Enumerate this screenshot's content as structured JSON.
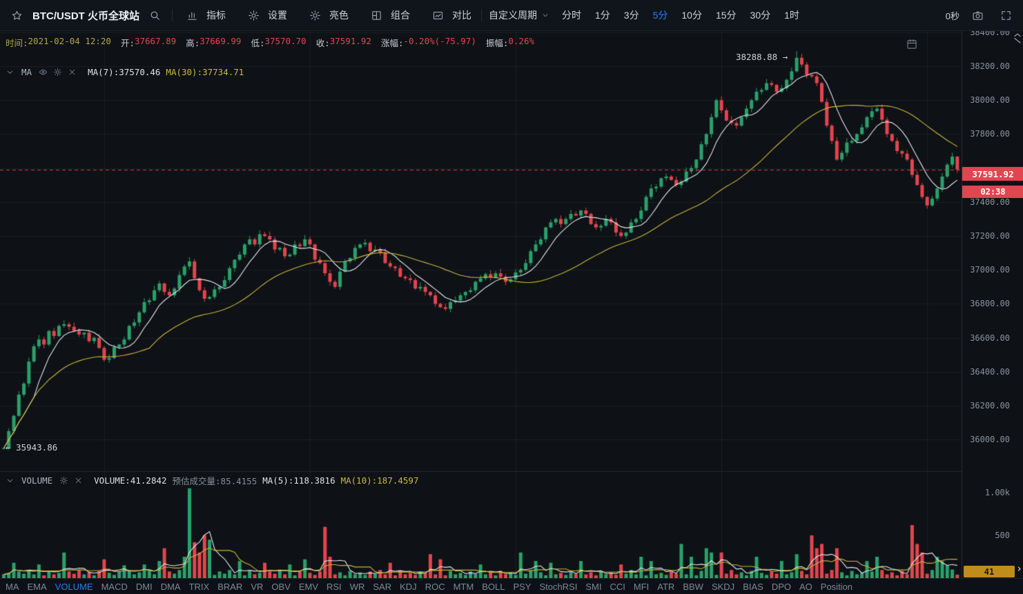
{
  "toolbar": {
    "symbol": "BTC/USDT 火币全球站",
    "menu_items": [
      {
        "label": "指标",
        "icon": "indicator-icon",
        "name": "menu-indicators"
      },
      {
        "label": "设置",
        "icon": "gear-icon",
        "name": "menu-settings"
      },
      {
        "label": "亮色",
        "icon": "sun-icon",
        "name": "menu-light-theme"
      },
      {
        "label": "组合",
        "icon": "layout-icon",
        "name": "menu-combine"
      },
      {
        "label": "对比",
        "icon": "compare-icon",
        "name": "menu-compare"
      }
    ],
    "custom_period_label": "自定义周期",
    "timeframes": [
      "分时",
      "1分",
      "3分",
      "5分",
      "10分",
      "15分",
      "30分",
      "1时"
    ],
    "active_timeframe": "5分",
    "countdown_label": "0秒"
  },
  "info_bar": {
    "time": {
      "label": "时间:",
      "value": "2021-02-04 12:20"
    },
    "fields": [
      {
        "name": "open",
        "label": "开:",
        "value": "37667.89"
      },
      {
        "name": "high",
        "label": "高:",
        "value": "37669.99"
      },
      {
        "name": "low",
        "label": "低:",
        "value": "37570.70"
      },
      {
        "name": "close",
        "label": "收:",
        "value": "37591.92"
      },
      {
        "name": "change",
        "label": "涨幅:",
        "value": "-0.20%(-75.97)"
      },
      {
        "name": "amplitude",
        "label": "振幅:",
        "value": "0.26%"
      }
    ]
  },
  "ma_panel": {
    "title": "MA",
    "ma7": "MA(7):37570.46",
    "ma30": "MA(30):37734.71"
  },
  "volume_panel": {
    "title": "VOLUME",
    "volume": "VOLUME:41.2842",
    "estimate": "预估成交量:85.4155",
    "ma5": "MA(5):118.3816",
    "ma10": "MA(10):187.4597"
  },
  "axis": {
    "price_labels": [
      "38400.00",
      "38200.00",
      "38000.00",
      "37800.00",
      "37400.00",
      "37200.00",
      "37000.00",
      "36800.00",
      "36600.00",
      "36400.00",
      "36200.00",
      "36000.00"
    ],
    "current_price": "37591.92",
    "countdown": "02:38",
    "volume_labels": [
      {
        "text": "1.00k",
        "value": 1000
      },
      {
        "text": "500",
        "value": 500
      }
    ],
    "volume_badge": "41"
  },
  "annotations": {
    "high_label": "38288.88 →",
    "low_label": "← 35943.86"
  },
  "bottom_tabs": {
    "items": [
      "MA",
      "EMA",
      "VOLUME",
      "MACD",
      "DMI",
      "DMA",
      "TRIX",
      "BRAR",
      "VR",
      "OBV",
      "EMV",
      "RSI",
      "WR",
      "SAR",
      "KDJ",
      "ROC",
      "MTM",
      "BOLL",
      "PSY",
      "StochRSI",
      "SMI",
      "CCI",
      "MFI",
      "ATR",
      "BBW",
      "SKDJ",
      "BIAS",
      "DPO",
      "AO",
      "Position"
    ],
    "active": "VOLUME"
  },
  "colors": {
    "up": "#2aa06a",
    "down": "#e2454f",
    "ma_fast": "#e8ecf2",
    "ma_slow": "#cdb83d",
    "accent_blue": "#2d7bf5",
    "badge_yellow": "#c08c1c",
    "price_line": "#e8394a",
    "grid": "rgba(255,255,255,0.055)"
  },
  "chart_data": {
    "type": "candlestick",
    "symbol": "BTC/USDT",
    "interval": "5分",
    "price_axis": {
      "min_label": 36000,
      "max_label": 38400,
      "step": 200
    },
    "current_price": 37591.92,
    "first_open": 35945,
    "last_candle": {
      "open": 37667.89,
      "high": 37669.99,
      "low": 37570.7,
      "close": 37591.92
    },
    "high_point": {
      "index": 158,
      "value": 38288.88
    },
    "low_point": {
      "index": 0,
      "value": 35943.86
    },
    "ma_overlays": [
      {
        "period": 7,
        "color": "ma_fast"
      },
      {
        "period": 30,
        "color": "ma_slow"
      }
    ],
    "volume_ma_overlays": [
      {
        "period": 5,
        "color": "ma_fast"
      },
      {
        "period": 10,
        "color": "ma_slow"
      }
    ],
    "closes": [
      35950,
      36050,
      36140,
      36265,
      36330,
      36460,
      36550,
      36590,
      36560,
      36640,
      36610,
      36670,
      36680,
      36665,
      36640,
      36620,
      36630,
      36580,
      36600,
      36540,
      36470,
      36480,
      36545,
      36560,
      36590,
      36670,
      36690,
      36750,
      36810,
      36820,
      36880,
      36920,
      36870,
      36850,
      36890,
      36970,
      37020,
      37050,
      36950,
      36880,
      36830,
      36840,
      36885,
      36900,
      36940,
      37010,
      37060,
      37090,
      37150,
      37180,
      37150,
      37210,
      37200,
      37180,
      37120,
      37130,
      37080,
      37090,
      37150,
      37140,
      37180,
      37150,
      37060,
      37040,
      36980,
      36930,
      36900,
      36990,
      37050,
      37070,
      37130,
      37150,
      37160,
      37110,
      37120,
      37100,
      37040,
      37020,
      37010,
      36960,
      36950,
      36940,
      36890,
      36900,
      36870,
      36850,
      36800,
      36780,
      36770,
      36810,
      36820,
      36850,
      36870,
      36880,
      36930,
      36950,
      36975,
      36955,
      36980,
      36960,
      36930,
      36945,
      36985,
      37000,
      37040,
      37110,
      37150,
      37180,
      37250,
      37280,
      37300,
      37270,
      37300,
      37330,
      37320,
      37350,
      37330,
      37270,
      37250,
      37260,
      37300,
      37280,
      37220,
      37200,
      37220,
      37280,
      37300,
      37350,
      37430,
      37480,
      37490,
      37540,
      37550,
      37530,
      37500,
      37520,
      37580,
      37600,
      37650,
      37740,
      37800,
      37900,
      38000,
      37940,
      37880,
      37865,
      37850,
      37900,
      37950,
      38000,
      38050,
      38060,
      38100,
      38090,
      38050,
      38070,
      38120,
      38170,
      38250,
      38210,
      38150,
      38140,
      38100,
      37990,
      37850,
      37760,
      37650,
      37690,
      37750,
      37760,
      37800,
      37840,
      37900,
      37935,
      37950,
      37885,
      37800,
      37760,
      37700,
      37685,
      37650,
      37560,
      37500,
      37430,
      37380,
      37420,
      37480,
      37550,
      37620,
      37668,
      37591.92
    ],
    "volumes": [
      45,
      62,
      180,
      78,
      52,
      95,
      44,
      160,
      33,
      85,
      45,
      62,
      300,
      78,
      52,
      95,
      44,
      68,
      33,
      85,
      220,
      62,
      38,
      78,
      150,
      95,
      44,
      68,
      160,
      85,
      45,
      200,
      350,
      78,
      52,
      95,
      250,
      1050,
      420,
      300,
      500,
      450,
      38,
      78,
      52,
      95,
      44,
      200,
      33,
      85,
      45,
      62,
      180,
      78,
      52,
      95,
      44,
      160,
      33,
      85,
      220,
      62,
      38,
      78,
      600,
      250,
      44,
      68,
      33,
      85,
      45,
      62,
      38,
      78,
      52,
      95,
      44,
      180,
      33,
      85,
      45,
      62,
      38,
      78,
      52,
      280,
      44,
      220,
      33,
      85,
      45,
      62,
      38,
      78,
      52,
      160,
      44,
      68,
      33,
      85,
      45,
      62,
      38,
      300,
      52,
      95,
      200,
      68,
      33,
      180,
      45,
      62,
      38,
      78,
      52,
      200,
      44,
      68,
      33,
      85,
      45,
      62,
      38,
      160,
      52,
      95,
      44,
      250,
      33,
      200,
      45,
      62,
      38,
      78,
      52,
      400,
      44,
      250,
      33,
      85,
      350,
      300,
      38,
      300,
      52,
      95,
      44,
      68,
      33,
      85,
      250,
      62,
      38,
      78,
      52,
      200,
      44,
      68,
      280,
      85,
      45,
      500,
      350,
      400,
      52,
      95,
      350,
      68,
      33,
      85,
      45,
      62,
      200,
      78,
      250,
      95,
      44,
      68,
      33,
      85,
      45,
      620,
      400,
      300,
      52,
      95,
      250,
      200,
      150,
      100,
      41
    ]
  }
}
